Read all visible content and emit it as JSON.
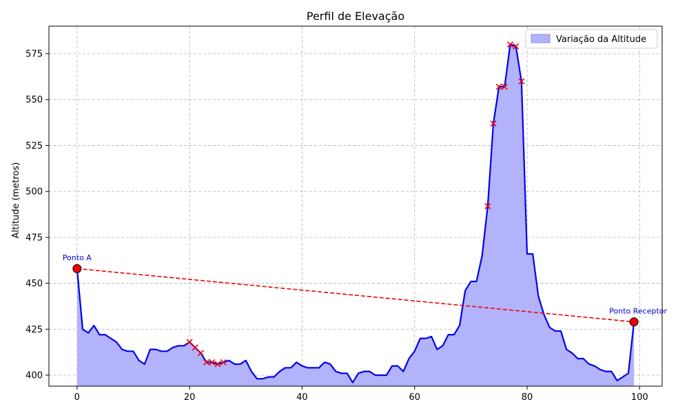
{
  "chart_data": {
    "type": "area",
    "title": "Perfil de Elevação",
    "xlabel": "",
    "ylabel": "Altitude (metros)",
    "xlim": [
      -5,
      104
    ],
    "ylim": [
      394,
      590
    ],
    "xticks": [
      0,
      20,
      40,
      60,
      80,
      100
    ],
    "yticks": [
      400,
      425,
      450,
      475,
      500,
      525,
      550,
      575
    ],
    "grid": true,
    "legend_position": "top-right",
    "series": [
      {
        "name": "Variação da Altitude",
        "fill_color": "#b3b3fb",
        "line_color": "#0000ee",
        "x": [
          0,
          1,
          2,
          3,
          4,
          5,
          6,
          7,
          8,
          9,
          10,
          11,
          12,
          13,
          14,
          15,
          16,
          17,
          18,
          19,
          20,
          21,
          22,
          23,
          24,
          25,
          26,
          27,
          28,
          29,
          30,
          31,
          32,
          33,
          34,
          35,
          36,
          37,
          38,
          39,
          40,
          41,
          42,
          43,
          44,
          45,
          46,
          47,
          48,
          49,
          50,
          51,
          52,
          53,
          54,
          55,
          56,
          57,
          58,
          59,
          60,
          61,
          62,
          63,
          64,
          65,
          66,
          67,
          68,
          69,
          70,
          71,
          72,
          73,
          74,
          75,
          76,
          77,
          78,
          79,
          80,
          81,
          82,
          83,
          84,
          85,
          86,
          87,
          88,
          89,
          90,
          91,
          92,
          93,
          94,
          95,
          96,
          97,
          98,
          99
        ],
        "values": [
          458,
          425,
          423,
          427,
          422,
          422,
          420,
          418,
          414,
          413,
          413,
          408,
          406,
          414,
          414,
          413,
          413,
          415,
          416,
          416,
          418,
          415,
          412,
          407,
          407,
          406,
          407,
          408,
          406,
          406,
          408,
          402,
          398,
          398,
          399,
          399,
          402,
          404,
          404,
          407,
          405,
          404,
          404,
          404,
          407,
          406,
          402,
          401,
          401,
          396,
          401,
          402,
          402,
          400,
          400,
          400,
          405,
          405,
          402,
          409,
          413,
          420,
          420,
          421,
          414,
          416,
          422,
          422,
          427,
          446,
          451,
          451,
          465,
          492,
          537,
          557,
          557,
          580,
          579,
          560,
          466,
          466,
          443,
          433,
          426,
          424,
          424,
          414,
          412,
          409,
          409,
          406,
          405,
          403,
          402,
          402,
          397,
          399,
          401,
          429
        ]
      }
    ],
    "markers": {
      "color": "#ee0000",
      "x": [
        20,
        21,
        22,
        23,
        24,
        25,
        26,
        73,
        74,
        75,
        76,
        77,
        78,
        79
      ],
      "values": [
        418,
        415,
        412,
        407,
        407,
        406,
        407,
        492,
        537,
        557,
        557,
        580,
        579,
        560
      ]
    },
    "line_of_sight": {
      "color": "#ee0000",
      "x": [
        0,
        99
      ],
      "values": [
        458,
        429
      ]
    },
    "endpoints": [
      {
        "label": "Ponto A",
        "x": 0,
        "value": 458,
        "color": "#0000cc"
      },
      {
        "label": "Ponto Receptor",
        "x": 99,
        "value": 429,
        "color": "#0000cc"
      }
    ]
  }
}
